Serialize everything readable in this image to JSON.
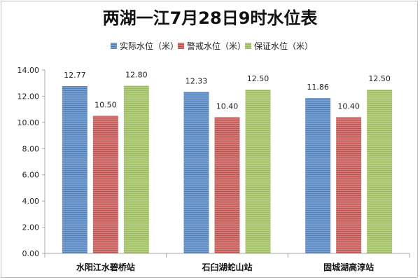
{
  "chart_data": {
    "type": "bar",
    "title": "两湖一江7月28日9时水位表",
    "categories": [
      "水阳江水碧桥站",
      "石臼湖蛇山站",
      "固城湖高淳站"
    ],
    "series": [
      {
        "name": "实际水位（米）",
        "color": "#4f81bd",
        "values": [
          12.77,
          12.33,
          11.86
        ]
      },
      {
        "name": "警戒水位（米）",
        "color": "#c0504d",
        "values": [
          10.5,
          10.4,
          10.4
        ]
      },
      {
        "name": "保证水位（米）",
        "color": "#9bbb59",
        "values": [
          12.8,
          12.5,
          12.5
        ]
      }
    ],
    "data_labels": [
      [
        "12.77",
        "12.33",
        "11.86"
      ],
      [
        "10.50",
        "10.40",
        "10.40"
      ],
      [
        "12.80",
        "12.50",
        "12.50"
      ]
    ],
    "ylim": [
      0,
      14
    ],
    "yticks": [
      "0.00",
      "2.00",
      "4.00",
      "6.00",
      "8.00",
      "10.00",
      "12.00",
      "14.00"
    ],
    "grid": false,
    "legend": "top"
  }
}
